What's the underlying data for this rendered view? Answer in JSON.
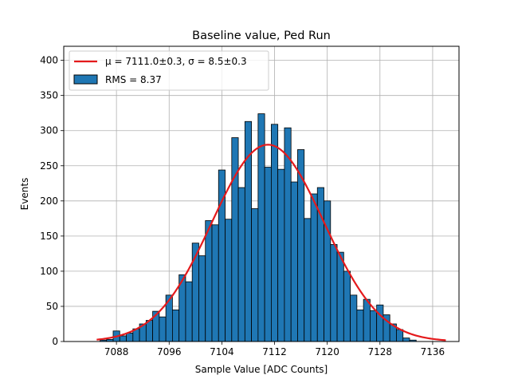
{
  "chart_data": {
    "type": "bar",
    "title": "Baseline value, Ped Run",
    "xlabel": "Sample Value [ADC Counts]",
    "ylabel": "Events",
    "xlim": [
      7080,
      7140
    ],
    "ylim": [
      0,
      420
    ],
    "xticks": [
      7088,
      7096,
      7104,
      7112,
      7120,
      7128,
      7136
    ],
    "yticks": [
      0,
      50,
      100,
      150,
      200,
      250,
      300,
      350,
      400
    ],
    "grid": true,
    "legend_position": "top-left",
    "bin_width": 1,
    "histogram": {
      "name": "RMS = 8.37",
      "color": "#1f77b4",
      "edgecolor": "#000000",
      "bin_centers": [
        7086,
        7087,
        7088,
        7089,
        7090,
        7091,
        7092,
        7093,
        7094,
        7095,
        7096,
        7097,
        7098,
        7099,
        7100,
        7101,
        7102,
        7103,
        7104,
        7105,
        7106,
        7107,
        7108,
        7109,
        7110,
        7111,
        7112,
        7113,
        7114,
        7115,
        7116,
        7117,
        7118,
        7119,
        7120,
        7121,
        7122,
        7123,
        7124,
        7125,
        7126,
        7127,
        7128,
        7129,
        7130,
        7131,
        7132,
        7133
      ],
      "counts": [
        2,
        3,
        15,
        8,
        12,
        18,
        25,
        30,
        43,
        35,
        66,
        45,
        95,
        85,
        140,
        122,
        172,
        166,
        244,
        174,
        290,
        219,
        313,
        189,
        324,
        248,
        309,
        245,
        304,
        227,
        273,
        175,
        210,
        219,
        200,
        138,
        127,
        100,
        66,
        45,
        60,
        44,
        52,
        38,
        25,
        17,
        5,
        2
      ]
    },
    "fit": {
      "name": "μ = 7111.0±0.3, σ = 8.5±0.3",
      "type": "gaussian",
      "color": "#e41a1c",
      "mu": 7111.0,
      "sigma": 8.5,
      "amplitude": 280,
      "x_range": [
        7085,
        7138
      ]
    }
  }
}
